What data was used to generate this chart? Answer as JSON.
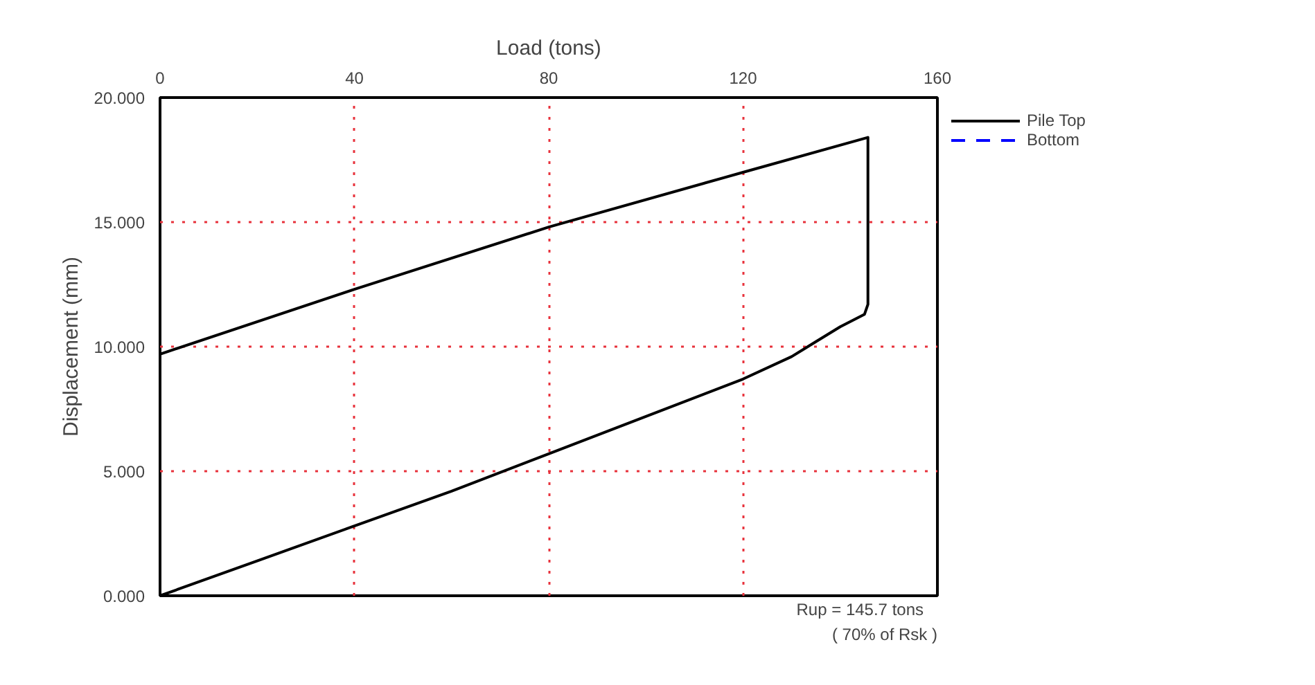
{
  "chart_data": {
    "type": "line",
    "xlabel": "Load (tons)",
    "ylabel": "Displacement (mm)",
    "series": [
      {
        "name": "Pile Top",
        "color": "#000000",
        "line_style": "solid",
        "x": [
          0,
          20,
          40,
          60,
          80,
          100,
          120,
          130,
          135,
          140,
          145,
          145.7,
          145.7,
          120,
          80,
          40,
          0
        ],
        "values": [
          0,
          1.4,
          2.8,
          4.2,
          5.7,
          7.2,
          8.7,
          9.6,
          10.2,
          10.8,
          11.3,
          11.7,
          18.4,
          17.0,
          14.8,
          12.3,
          9.7
        ]
      },
      {
        "name": "Bottom",
        "color": "#0000ff",
        "line_style": "dashed"
      }
    ],
    "xlim": [
      0,
      160
    ],
    "xticks": [
      0,
      40,
      80,
      120,
      160
    ],
    "ylim": [
      0,
      20
    ],
    "yticks": [
      {
        "value": 0,
        "label": "0.000"
      },
      {
        "value": 5,
        "label": "5.000"
      },
      {
        "value": 10,
        "label": "10.000"
      },
      {
        "value": 15,
        "label": "15.000"
      },
      {
        "value": 20,
        "label": "20.000"
      }
    ],
    "grid": true,
    "legend": "top right",
    "marker": "none",
    "annotations": [
      "Rup =    145.7 tons",
      "( 70% of Rsk )"
    ]
  }
}
